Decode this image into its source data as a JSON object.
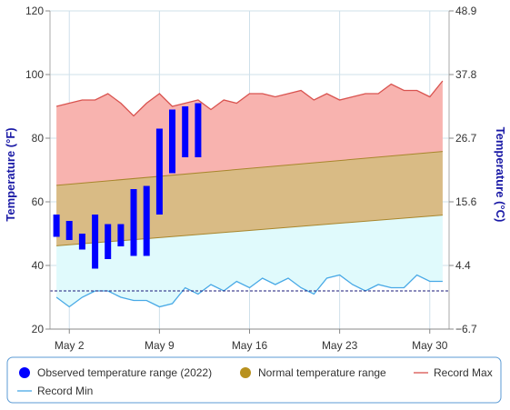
{
  "chart_data": {
    "type": "bar",
    "ylabel_left": "Temperature (°F)",
    "ylabel_right": "Temperature (°C)",
    "ylim": [
      20,
      120
    ],
    "y_ticks_left": [
      "120",
      "100",
      "80",
      "60",
      "40",
      "20"
    ],
    "y_ticks_right": [
      "48.9",
      "37.8",
      "26.7",
      "15.6",
      "4.4",
      "−6.7"
    ],
    "x_ticks": [
      {
        "day": 2,
        "label": "May 2"
      },
      {
        "day": 9,
        "label": "May 9"
      },
      {
        "day": 16,
        "label": "May 16"
      },
      {
        "day": 23,
        "label": "May 23"
      },
      {
        "day": 30,
        "label": "May 30"
      }
    ],
    "day_range": [
      0.5,
      31.5
    ],
    "freeze_line": 32,
    "grid": true,
    "normal_range": {
      "name": "Normal temperature range",
      "low": {
        "start": 46,
        "end": 56
      },
      "high": {
        "start": 65,
        "end": 76
      }
    },
    "observed": {
      "name": "Observed temperature range (2022)",
      "days": [
        1,
        2,
        3,
        4,
        5,
        6,
        7,
        8,
        9,
        10,
        11,
        12
      ],
      "low": [
        49,
        48,
        45,
        39,
        42,
        46,
        43,
        43,
        56,
        69,
        74,
        74
      ],
      "high": [
        56,
        54,
        50,
        56,
        53,
        53,
        64,
        65,
        83,
        89,
        90,
        91
      ]
    },
    "record_max": {
      "name": "Record Max",
      "days": [
        1,
        2,
        3,
        4,
        5,
        6,
        7,
        8,
        9,
        10,
        11,
        12,
        13,
        14,
        15,
        16,
        17,
        18,
        19,
        20,
        21,
        22,
        23,
        24,
        25,
        26,
        27,
        28,
        29,
        30,
        31
      ],
      "values": [
        90,
        91,
        92,
        92,
        94,
        91,
        87,
        91,
        94,
        90,
        91,
        92,
        89,
        92,
        91,
        94,
        94,
        93,
        94,
        95,
        92,
        94,
        92,
        93,
        94,
        94,
        97,
        95,
        95,
        93,
        98
      ]
    },
    "record_min": {
      "name": "Record Min",
      "days": [
        1,
        2,
        3,
        4,
        5,
        6,
        7,
        8,
        9,
        10,
        11,
        12,
        13,
        14,
        15,
        16,
        17,
        18,
        19,
        20,
        21,
        22,
        23,
        24,
        25,
        26,
        27,
        28,
        29,
        30,
        31
      ],
      "values": [
        30,
        27,
        30,
        32,
        32,
        30,
        29,
        29,
        27,
        28,
        33,
        31,
        34,
        32,
        35,
        33,
        36,
        34,
        36,
        33,
        31,
        36,
        37,
        34,
        32,
        34,
        33,
        33,
        37,
        35,
        35
      ]
    },
    "legend_position": "bottom",
    "colors": {
      "observed": "#0000ff",
      "normal_fill": "#d9bb85",
      "normal_line": "#a8862c",
      "normal_legend": "#b8911e",
      "record_max_fill": "#f8b3af",
      "record_max_line": "#d9534f",
      "record_min_fill": "#e0fafc",
      "record_min_line": "#48a9e6",
      "freeze_line": "#1a1a7a",
      "axis_title": "#1a1aa6",
      "grid": "#cfe0ea",
      "legend_border": "#5b9bd5"
    }
  }
}
